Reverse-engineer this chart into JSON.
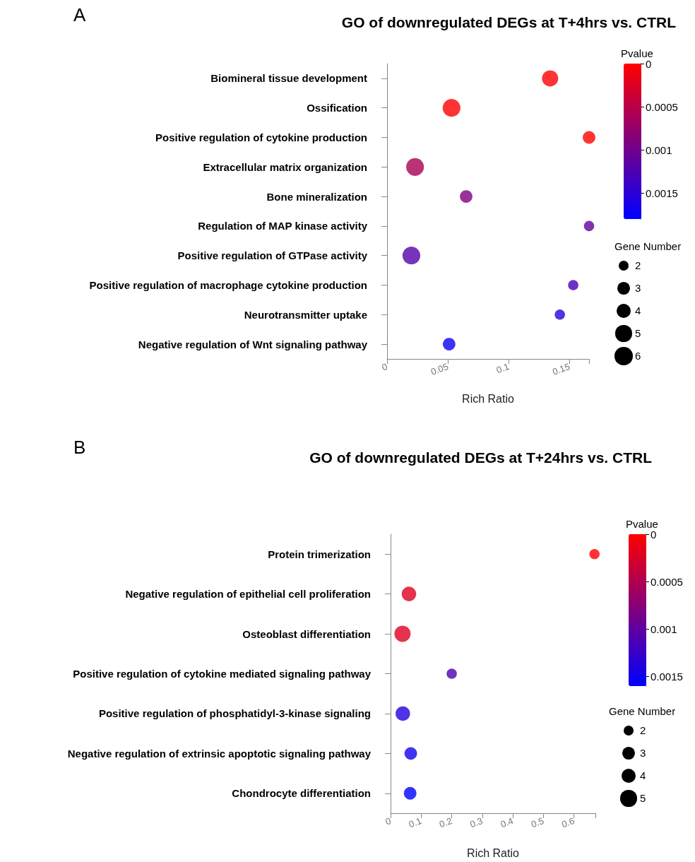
{
  "chart_data": [
    {
      "type": "bubble",
      "orientation": "horizontal",
      "title": "GO of downregulated DEGs at T+4hrs vs. CTRL",
      "annotations": [
        "A"
      ],
      "xlabel": "Rich Ratio",
      "clabel": "Pvalue",
      "legend_title": "Gene Number",
      "categories": [
        "Biomineral tissue development",
        "Ossification",
        "Positive regulation of cytokine production",
        "Extracellular matrix organization",
        "Bone mineralization",
        "Regulation of MAP kinase activity",
        "Positive regulation of GTPase activity",
        "Positive regulation of macrophage cytokine production",
        "Neurotransmitter uptake",
        "Negative regulation of Wnt signaling pathway"
      ],
      "values": [
        0.134,
        0.053,
        0.166,
        0.023,
        0.065,
        0.166,
        0.02,
        0.153,
        0.142,
        0.051
      ],
      "sizes": [
        5,
        6,
        3,
        6,
        3,
        2,
        6,
        2,
        2,
        3
      ],
      "cvalues": [
        0,
        0,
        0,
        0.0006,
        0.0009,
        0.0011,
        0.0012,
        0.0013,
        0.0015,
        0.0017
      ],
      "clim": [
        0,
        0.0018
      ],
      "cticks": [
        0,
        0.0005,
        0.001,
        0.0015
      ],
      "size_legend": [
        2,
        3,
        4,
        5,
        6
      ],
      "xlim": [
        0,
        0.166
      ],
      "xticks": [
        0,
        0.05,
        0.1,
        0.15,
        {
          "value": 0.166,
          "label": null
        }
      ]
    },
    {
      "type": "bubble",
      "orientation": "horizontal",
      "title": "GO of downregulated DEGs at T+24hrs vs. CTRL",
      "annotations": [
        "B"
      ],
      "xlabel": "Rich Ratio",
      "clabel": "Pvalue",
      "legend_title": "Gene Number",
      "categories": [
        "Protein trimerization",
        "Negative regulation of epithelial cell proliferation",
        "Osteoblast differentiation",
        "Positive regulation of cytokine mediated signaling pathway",
        "Positive regulation of phosphatidyl-3-kinase signaling",
        "Negative regulation of extrinsic apoptotic signaling pathway",
        "Chondrocyte differentiation"
      ],
      "values": [
        0.667,
        0.06,
        0.039,
        0.2,
        0.04,
        0.066,
        0.064
      ],
      "sizes": [
        2,
        4,
        5,
        2,
        4,
        3,
        3
      ],
      "cvalues": [
        0,
        0.0002,
        0.0002,
        0.0011,
        0.0014,
        0.0015,
        0.0016
      ],
      "clim": [
        0,
        0.0016
      ],
      "cticks": [
        0,
        0.0005,
        0.001,
        0.0015
      ],
      "size_legend": [
        2,
        3,
        4,
        5
      ],
      "xlim": [
        0,
        0.67
      ],
      "xticks": [
        0,
        0.1,
        0.2,
        0.3,
        0.4,
        0.5,
        0.6,
        {
          "value": 0.67,
          "label": null
        }
      ]
    }
  ]
}
